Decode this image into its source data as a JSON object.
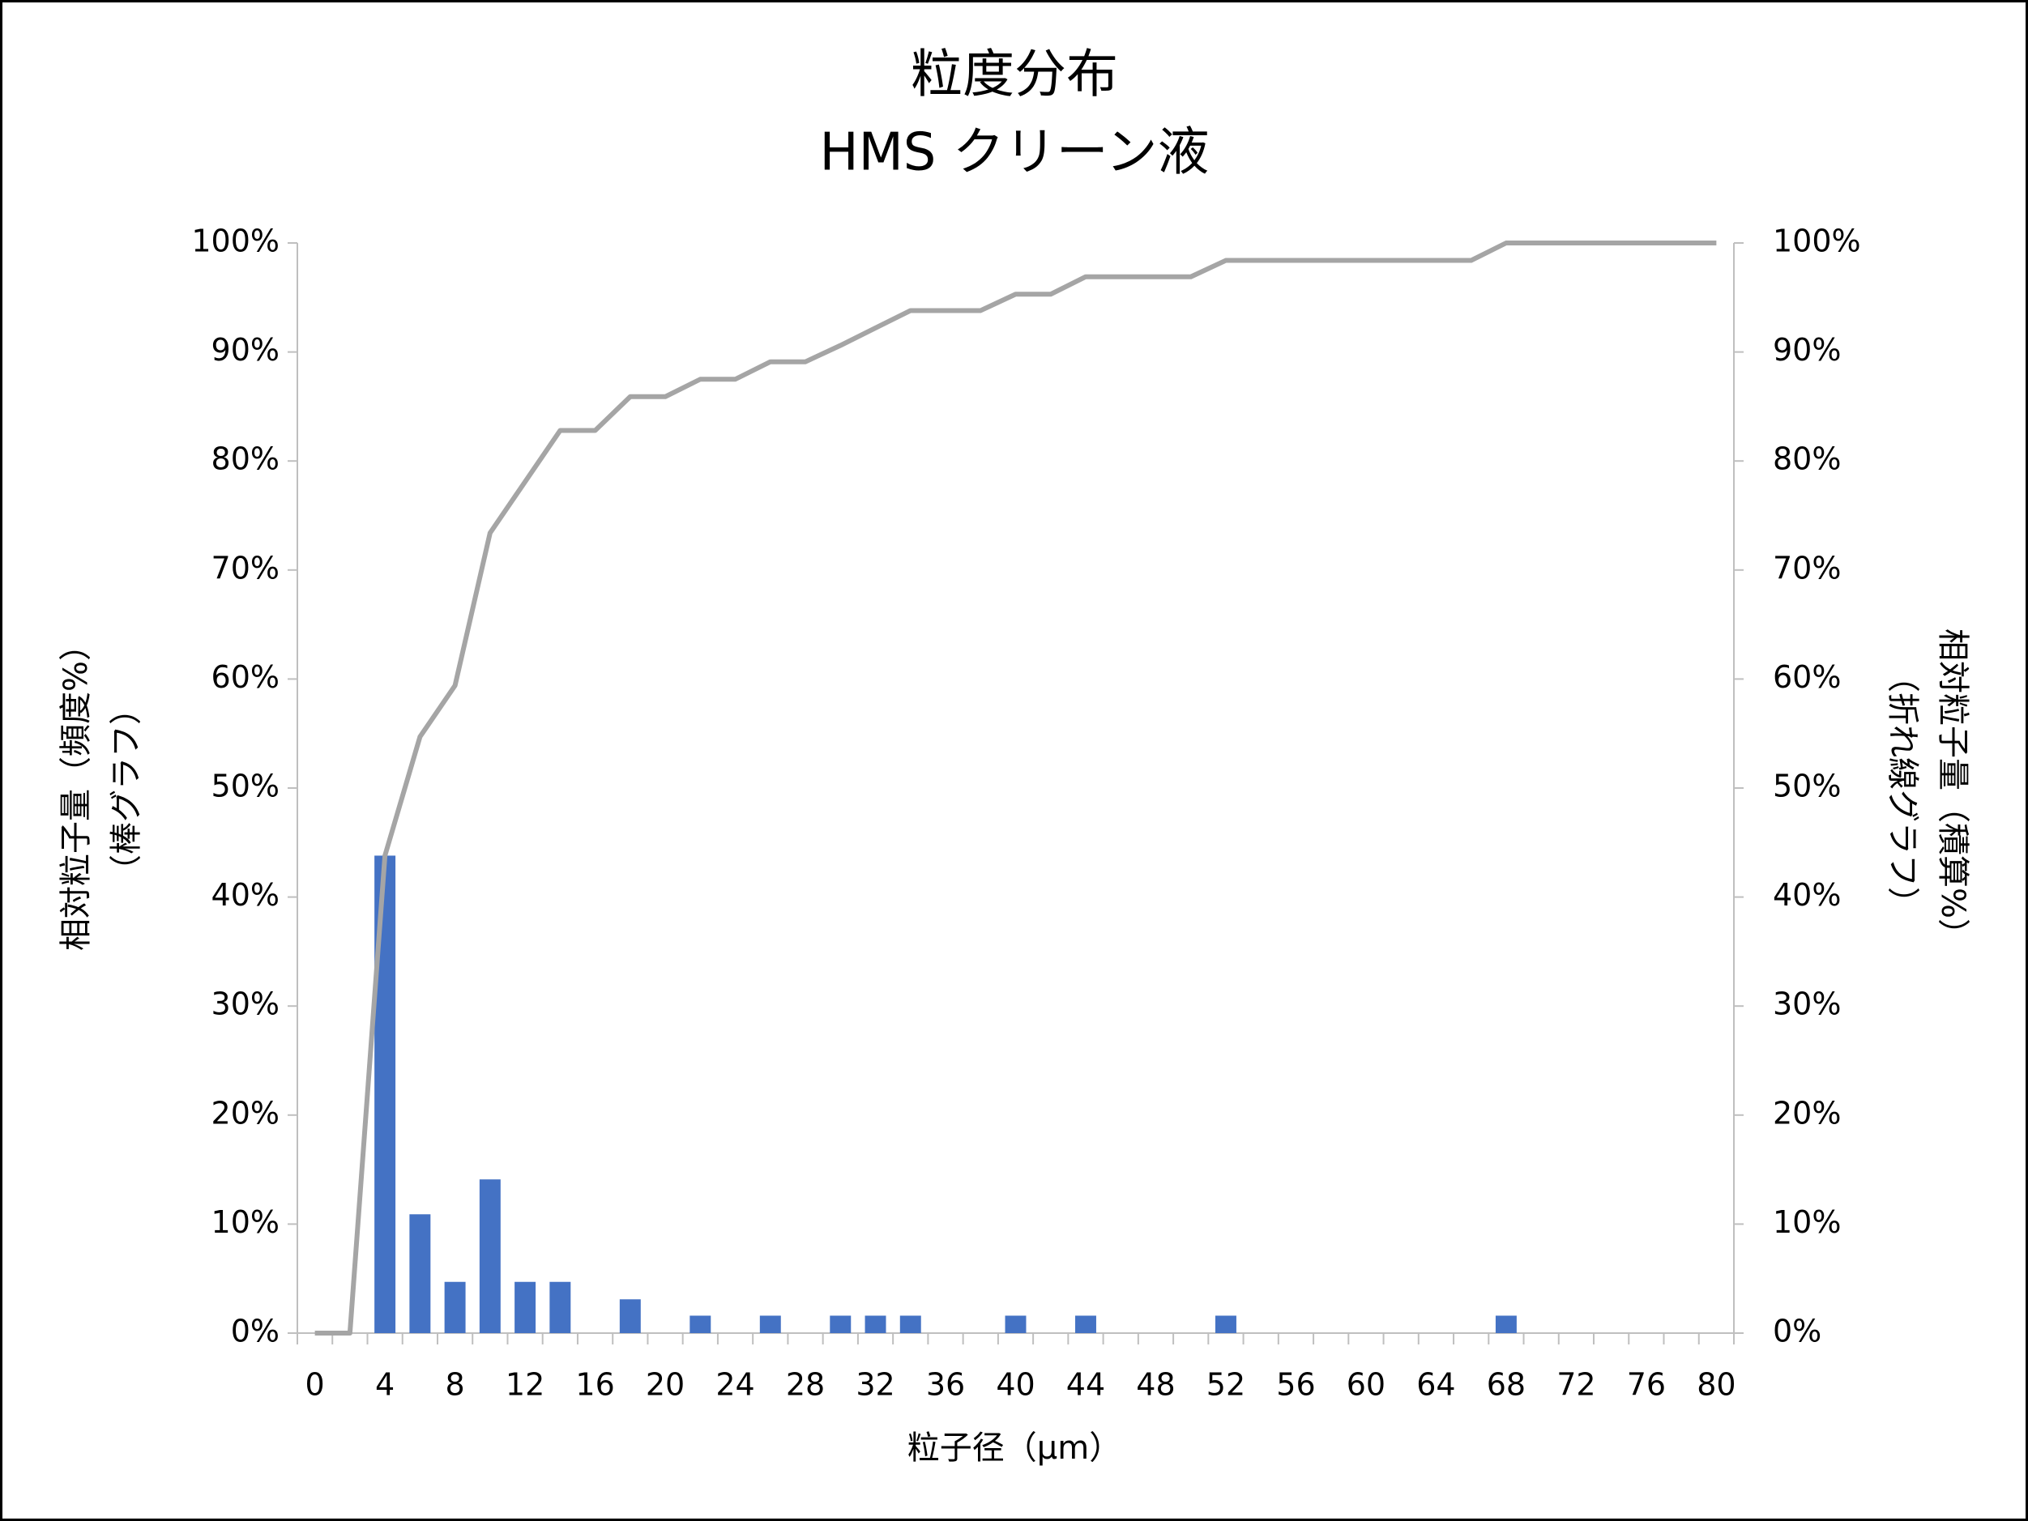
{
  "chart_data": {
    "type": "bar-line",
    "title": [
      "粒度分布",
      "HMS クリーン液"
    ],
    "x_label": "粒子径（μm）",
    "y_label": [
      "相対粒子量（頻度%）",
      "（棒グラフ）"
    ],
    "y2_label": [
      "相対粒子量（積算%）",
      "（折れ線グラフ）"
    ],
    "categories": [
      0,
      null,
      4,
      null,
      8,
      null,
      12,
      null,
      16,
      null,
      20,
      null,
      24,
      null,
      28,
      null,
      32,
      null,
      36,
      null,
      40,
      null,
      44,
      null,
      48,
      null,
      52,
      null,
      56,
      null,
      60,
      null,
      64,
      null,
      68,
      null,
      72,
      null,
      76,
      null,
      80
    ],
    "series": [
      {
        "type": "bar",
        "color": "#4472c4",
        "values": [
          0,
          0,
          43.8,
          10.9,
          4.7,
          14.1,
          4.7,
          4.7,
          0,
          3.1,
          0,
          1.6,
          0,
          1.6,
          0,
          1.6,
          1.6,
          1.6,
          0,
          0,
          1.6,
          0,
          1.6,
          0,
          0,
          0,
          1.6,
          0,
          0,
          0,
          0,
          0,
          0,
          0,
          1.6,
          0,
          0,
          0,
          0,
          0,
          0
        ]
      },
      {
        "type": "line",
        "axis": "y2",
        "color": "#a5a5a5",
        "values": [
          0,
          0,
          43.8,
          54.7,
          59.4,
          73.4,
          78.1,
          82.8,
          82.8,
          85.9,
          85.9,
          87.5,
          87.5,
          89.1,
          89.1,
          90.6,
          92.2,
          93.8,
          93.8,
          93.8,
          95.3,
          95.3,
          96.9,
          96.9,
          96.9,
          96.9,
          98.4,
          98.4,
          98.4,
          98.4,
          98.4,
          98.4,
          98.4,
          98.4,
          100,
          100,
          100,
          100,
          100,
          100,
          100
        ]
      }
    ],
    "ylim": [
      0,
      100
    ],
    "yticks": [
      {
        "value": 0,
        "label": "0%"
      },
      {
        "value": 10,
        "label": "10%"
      },
      {
        "value": 20,
        "label": "20%"
      },
      {
        "value": 30,
        "label": "30%"
      },
      {
        "value": 40,
        "label": "40%"
      },
      {
        "value": 50,
        "label": "50%"
      },
      {
        "value": 60,
        "label": "60%"
      },
      {
        "value": 70,
        "label": "70%"
      },
      {
        "value": 80,
        "label": "80%"
      },
      {
        "value": 90,
        "label": "90%"
      },
      {
        "value": 100,
        "label": "100%"
      }
    ],
    "y2lim": [
      0,
      100
    ],
    "y2ticks": [
      {
        "value": 0,
        "label": "0%"
      },
      {
        "value": 10,
        "label": "10%"
      },
      {
        "value": 20,
        "label": "20%"
      },
      {
        "value": 30,
        "label": "30%"
      },
      {
        "value": 40,
        "label": "40%"
      },
      {
        "value": 50,
        "label": "50%"
      },
      {
        "value": 60,
        "label": "60%"
      },
      {
        "value": 70,
        "label": "70%"
      },
      {
        "value": 80,
        "label": "80%"
      },
      {
        "value": 90,
        "label": "90%"
      },
      {
        "value": 100,
        "label": "100%"
      }
    ],
    "grid": false
  }
}
